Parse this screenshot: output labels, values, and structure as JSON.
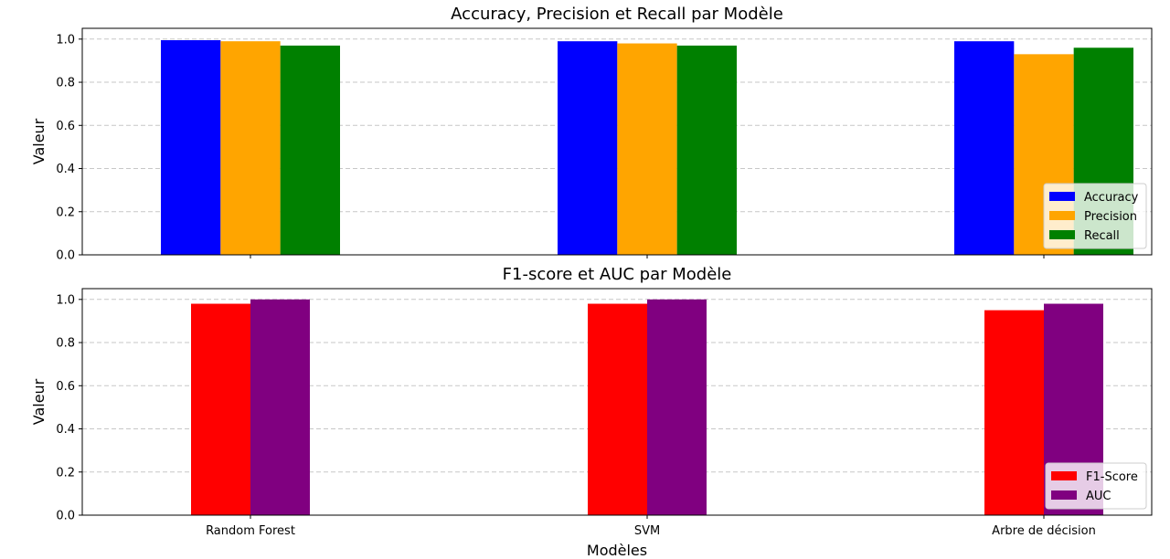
{
  "chart_data": [
    {
      "type": "bar",
      "title": "Accuracy, Precision et Recall par Modèle",
      "xlabel": "",
      "ylabel": "Valeur",
      "ylim": [
        0,
        1.05
      ],
      "yticks": [
        "0.0",
        "0.2",
        "0.4",
        "0.6",
        "0.8",
        "1.0"
      ],
      "show_xtick_labels": false,
      "categories": [
        "Random Forest",
        "SVM",
        "Arbre de décision"
      ],
      "grid": "y",
      "legend_position": "lower-right",
      "series": [
        {
          "name": "Accuracy",
          "color": "#0000ff",
          "values": [
            0.995,
            0.99,
            0.99
          ]
        },
        {
          "name": "Precision",
          "color": "#ffa500",
          "values": [
            0.99,
            0.98,
            0.93
          ]
        },
        {
          "name": "Recall",
          "color": "#008000",
          "values": [
            0.97,
            0.97,
            0.96
          ]
        }
      ]
    },
    {
      "type": "bar",
      "title": "F1-score et AUC par Modèle",
      "xlabel": "Modèles",
      "ylabel": "Valeur",
      "ylim": [
        0,
        1.05
      ],
      "yticks": [
        "0.0",
        "0.2",
        "0.4",
        "0.6",
        "0.8",
        "1.0"
      ],
      "show_xtick_labels": true,
      "categories": [
        "Random Forest",
        "SVM",
        "Arbre de décision"
      ],
      "grid": "y",
      "legend_position": "lower-right",
      "series": [
        {
          "name": "F1-Score",
          "color": "#ff0000",
          "values": [
            0.98,
            0.98,
            0.95
          ]
        },
        {
          "name": "AUC",
          "color": "#800080",
          "values": [
            1.0,
            1.0,
            0.98
          ]
        }
      ]
    }
  ]
}
